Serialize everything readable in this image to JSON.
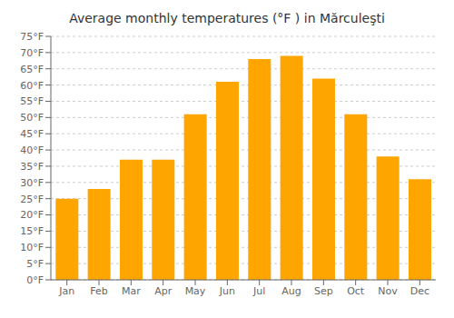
{
  "chart_data": {
    "type": "bar",
    "title": "Average monthly temperatures (°F ) in Mărculeşti",
    "categories": [
      "Jan",
      "Feb",
      "Mar",
      "Apr",
      "May",
      "Jun",
      "Jul",
      "Aug",
      "Sep",
      "Oct",
      "Nov",
      "Dec"
    ],
    "values": [
      25,
      28,
      37,
      37,
      51,
      61,
      68,
      69,
      62,
      51,
      38,
      31
    ],
    "color": "#FFA500",
    "ylim": [
      0,
      75
    ],
    "yticks": [
      {
        "value": 0,
        "label": "0°F"
      },
      {
        "value": 5,
        "label": "5°F"
      },
      {
        "value": 10,
        "label": "10°F"
      },
      {
        "value": 15,
        "label": "15°F"
      },
      {
        "value": 20,
        "label": "20°F"
      },
      {
        "value": 25,
        "label": "25°F"
      },
      {
        "value": 30,
        "label": "30°F"
      },
      {
        "value": 35,
        "label": "35°F"
      },
      {
        "value": 40,
        "label": "40°F"
      },
      {
        "value": 45,
        "label": "45°F"
      },
      {
        "value": 50,
        "label": "50°F"
      },
      {
        "value": 55,
        "label": "55°F"
      },
      {
        "value": 60,
        "label": "60°F"
      },
      {
        "value": 65,
        "label": "65°F"
      },
      {
        "value": 70,
        "label": "70°F"
      },
      {
        "value": 75,
        "label": "75°F"
      }
    ],
    "grid": true
  }
}
